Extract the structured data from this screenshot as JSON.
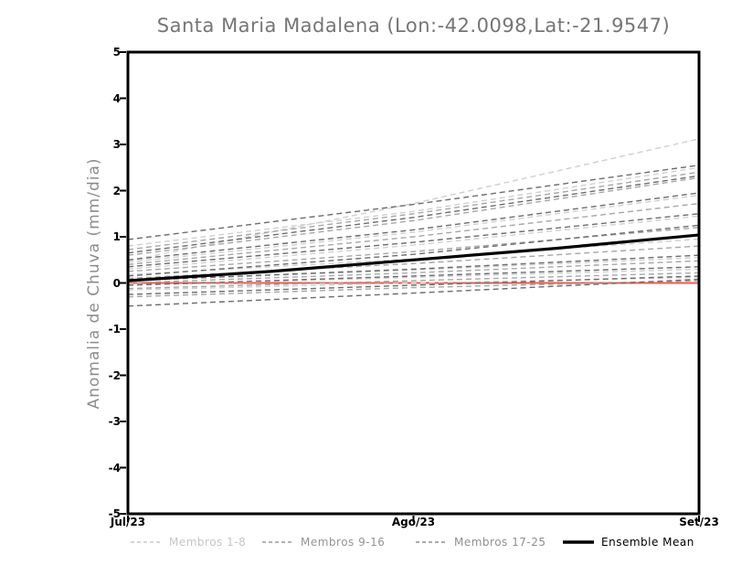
{
  "chart_data": {
    "type": "line",
    "title": "Santa Maria Madalena (Lon:-42.0098,Lat:-21.9547)",
    "ylabel": "Anomalia de Chuva (mm/dia)",
    "xlabel": "",
    "ylim": [
      -5,
      5
    ],
    "grid": false,
    "legend_position": "bottom",
    "y_ticks": [
      5,
      4,
      3,
      2,
      1,
      0,
      -1,
      -2,
      -3,
      -4,
      -5
    ],
    "x_ticks": [
      {
        "label": "Jul/23",
        "t": 0
      },
      {
        "label": "Ago/23",
        "t": 0.5
      },
      {
        "label": "Set/23",
        "t": 1
      }
    ],
    "zero_line": {
      "value": 0,
      "color": "#f0584e"
    },
    "axis_color": "#000000",
    "groups": [
      {
        "name": "Membros 1-8",
        "color": "#cfcfcf",
        "style": "dashed",
        "members": [
          [
            0.48,
            1.72,
            3.12
          ],
          [
            0.8,
            1.55,
            2.5
          ],
          [
            0.45,
            1.1,
            1.9
          ],
          [
            0.3,
            0.82,
            1.45
          ],
          [
            0.18,
            0.52,
            0.95
          ],
          [
            0.05,
            0.28,
            0.55
          ],
          [
            -0.05,
            0.12,
            0.3
          ],
          [
            -0.15,
            0.0,
            0.12
          ]
        ]
      },
      {
        "name": "Membros 9-16",
        "color": "#a6a6a6",
        "style": "dashed",
        "members": [
          [
            0.72,
            1.5,
            2.4
          ],
          [
            0.6,
            1.35,
            2.28
          ],
          [
            0.4,
            1.0,
            1.72
          ],
          [
            0.25,
            0.68,
            1.2
          ],
          [
            0.1,
            0.42,
            0.8
          ],
          [
            0.0,
            0.22,
            0.48
          ],
          [
            -0.12,
            0.05,
            0.22
          ],
          [
            -0.3,
            -0.1,
            0.05
          ]
        ]
      },
      {
        "name": "Membros 17-25",
        "color": "#6b6b6b",
        "style": "dashed",
        "members": [
          [
            0.94,
            1.7,
            2.55
          ],
          [
            0.65,
            1.42,
            2.32
          ],
          [
            0.5,
            1.15,
            1.95
          ],
          [
            0.35,
            0.88,
            1.5
          ],
          [
            0.15,
            0.62,
            1.25
          ],
          [
            0.05,
            0.3,
            0.6
          ],
          [
            -0.05,
            0.15,
            0.35
          ],
          [
            -0.25,
            -0.05,
            0.15
          ],
          [
            -0.5,
            -0.22,
            0.08
          ]
        ]
      }
    ],
    "mean": {
      "name": "Ensemble Mean",
      "color": "#000000",
      "style": "solid",
      "values": [
        0.05,
        0.25,
        0.5,
        0.75,
        1.04
      ]
    },
    "legend": [
      {
        "label": "Membros 1-8",
        "line_color": "#c9c9c9",
        "text_color": "#c6c6c6",
        "style": "dashed"
      },
      {
        "label": "Membros 9-16",
        "line_color": "#9a9a9a",
        "text_color": "#949494",
        "style": "dashed"
      },
      {
        "label": "Membros 17-25",
        "line_color": "#8f8f8f",
        "text_color": "#8f8f8f",
        "style": "dashed"
      },
      {
        "label": "Ensemble Mean",
        "line_color": "#000000",
        "text_color": "#000000",
        "style": "solid"
      }
    ]
  }
}
